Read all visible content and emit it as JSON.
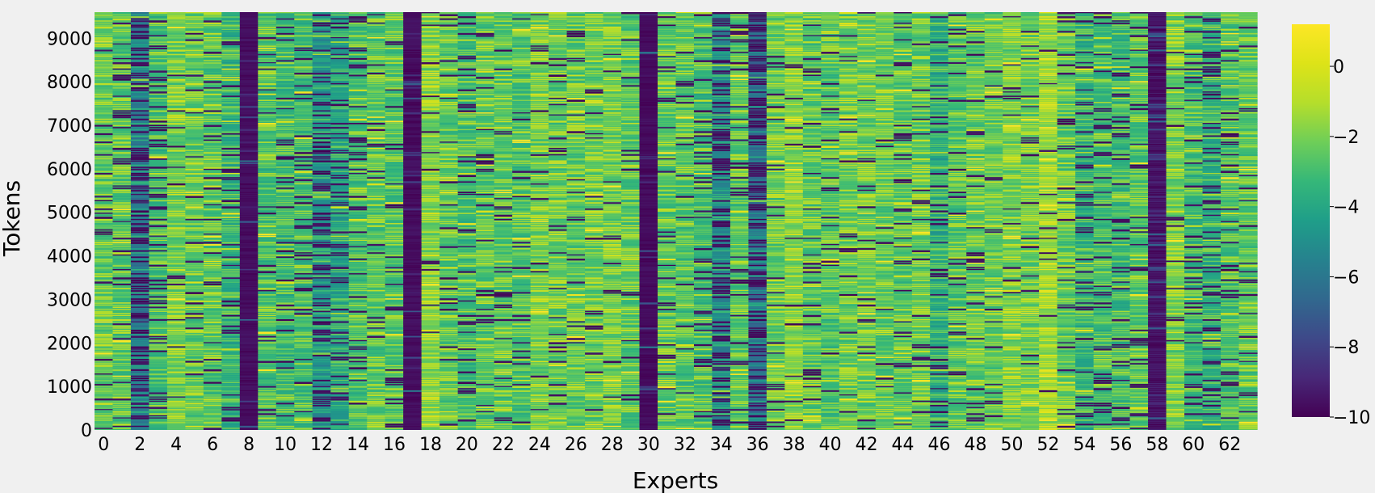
{
  "chart_data": {
    "type": "heatmap",
    "title": "",
    "xlabel": "Experts",
    "ylabel": "Tokens",
    "x_count": 64,
    "x_ticks": [
      0,
      2,
      4,
      6,
      8,
      10,
      12,
      14,
      16,
      18,
      20,
      22,
      24,
      26,
      28,
      30,
      32,
      34,
      36,
      38,
      40,
      42,
      44,
      46,
      48,
      50,
      52,
      54,
      56,
      58,
      60,
      62
    ],
    "y_range": [
      0,
      9600
    ],
    "y_ticks": [
      0,
      1000,
      2000,
      3000,
      4000,
      5000,
      6000,
      7000,
      8000,
      9000
    ],
    "colormap": "viridis",
    "color_range": [
      -10,
      1.2
    ],
    "colorbar_ticks": [
      0,
      -2,
      -4,
      -6,
      -8,
      -10
    ],
    "expert_mean_values": [
      -3.0,
      -3.2,
      -6.0,
      -3.6,
      -2.7,
      -3.0,
      -3.2,
      -4.1,
      -9.5,
      -3.5,
      -3.8,
      -3.7,
      -5.2,
      -4.6,
      -3.4,
      -3.2,
      -3.3,
      -9.5,
      -2.4,
      -3.1,
      -3.6,
      -3.2,
      -3.1,
      -3.4,
      -2.7,
      -3.0,
      -3.0,
      -2.8,
      -2.7,
      -3.2,
      -9.7,
      -3.2,
      -3.3,
      -3.6,
      -5.5,
      -3.2,
      -6.5,
      -2.9,
      -2.4,
      -3.2,
      -3.3,
      -2.8,
      -2.9,
      -3.0,
      -3.2,
      -3.0,
      -4.3,
      -3.3,
      -3.0,
      -2.9,
      -2.6,
      -2.8,
      -2.0,
      -3.0,
      -4.0,
      -3.6,
      -3.8,
      -3.2,
      -9.0,
      -2.6,
      -3.7,
      -4.2,
      -3.5,
      -3.1
    ],
    "expert_dark_fraction": [
      0.1,
      0.16,
      0.45,
      0.22,
      0.06,
      0.08,
      0.1,
      0.15,
      0.85,
      0.14,
      0.15,
      0.16,
      0.38,
      0.22,
      0.18,
      0.12,
      0.12,
      0.85,
      0.05,
      0.09,
      0.16,
      0.11,
      0.12,
      0.14,
      0.06,
      0.08,
      0.09,
      0.07,
      0.06,
      0.12,
      0.88,
      0.1,
      0.12,
      0.15,
      0.42,
      0.14,
      0.52,
      0.1,
      0.05,
      0.1,
      0.1,
      0.07,
      0.08,
      0.09,
      0.11,
      0.09,
      0.18,
      0.13,
      0.1,
      0.09,
      0.06,
      0.08,
      0.04,
      0.08,
      0.16,
      0.15,
      0.17,
      0.12,
      0.78,
      0.07,
      0.16,
      0.22,
      0.15,
      0.1
    ]
  }
}
